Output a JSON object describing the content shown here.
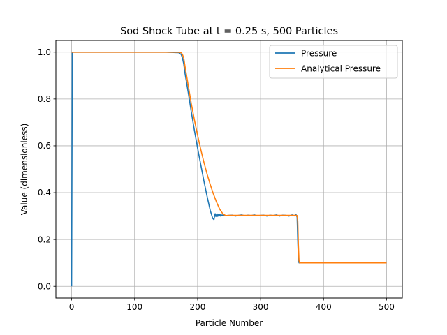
{
  "chart_data": {
    "type": "line",
    "title": "Sod Shock Tube at t = 0.25 s, 500 Particles",
    "xlabel": "Particle Number",
    "ylabel": "Value (dimensionless)",
    "xlim": [
      -25,
      525
    ],
    "ylim": [
      -0.05,
      1.05
    ],
    "xticks": [
      0,
      100,
      200,
      300,
      400,
      500
    ],
    "yticks": [
      0.0,
      0.2,
      0.4,
      0.6,
      0.8,
      1.0
    ],
    "xtick_labels": [
      "0",
      "100",
      "200",
      "300",
      "400",
      "500"
    ],
    "ytick_labels": [
      "0.0",
      "0.2",
      "0.4",
      "0.6",
      "0.8",
      "1.0"
    ],
    "grid": true,
    "legend_position": "top-right",
    "series": [
      {
        "name": "Pressure",
        "color": "#1f77b4",
        "x": [
          0,
          1,
          2,
          5,
          50,
          100,
          150,
          170,
          174,
          176,
          178,
          180,
          185,
          190,
          195,
          200,
          205,
          210,
          215,
          220,
          224,
          226,
          227,
          228,
          229,
          230,
          231,
          232,
          233,
          234,
          235,
          236,
          237,
          238,
          239,
          240,
          242,
          245,
          250,
          255,
          260,
          265,
          270,
          275,
          280,
          285,
          290,
          295,
          300,
          305,
          310,
          315,
          320,
          325,
          330,
          335,
          340,
          345,
          350,
          354,
          356,
          357,
          358,
          359,
          360,
          361,
          365,
          380,
          400,
          450,
          500
        ],
        "y": [
          0.0,
          1.0,
          1.0,
          1.0,
          1.0,
          1.0,
          1.0,
          0.998,
          0.99,
          0.975,
          0.95,
          0.91,
          0.83,
          0.745,
          0.665,
          0.59,
          0.52,
          0.45,
          0.385,
          0.325,
          0.29,
          0.285,
          0.3,
          0.31,
          0.298,
          0.305,
          0.309,
          0.299,
          0.306,
          0.301,
          0.308,
          0.3,
          0.306,
          0.302,
          0.305,
          0.303,
          0.304,
          0.301,
          0.303,
          0.304,
          0.3,
          0.303,
          0.305,
          0.301,
          0.304,
          0.302,
          0.305,
          0.301,
          0.303,
          0.304,
          0.3,
          0.304,
          0.302,
          0.305,
          0.3,
          0.304,
          0.303,
          0.3,
          0.305,
          0.301,
          0.308,
          0.302,
          0.295,
          0.2,
          0.12,
          0.1,
          0.1,
          0.1,
          0.1,
          0.1,
          0.1
        ]
      },
      {
        "name": "Analytical Pressure",
        "color": "#ff7f0e",
        "x": [
          0,
          50,
          100,
          150,
          170,
          174,
          176,
          178,
          180,
          185,
          190,
          195,
          200,
          205,
          210,
          215,
          220,
          225,
          230,
          235,
          240,
          244,
          246,
          248,
          250,
          300,
          350,
          355,
          357,
          358,
          359,
          360,
          361,
          362,
          365,
          400,
          450,
          500
        ],
        "y": [
          1.0,
          1.0,
          1.0,
          1.0,
          1.0,
          0.998,
          0.99,
          0.975,
          0.94,
          0.86,
          0.78,
          0.71,
          0.645,
          0.585,
          0.53,
          0.48,
          0.435,
          0.395,
          0.36,
          0.33,
          0.31,
          0.303,
          0.302,
          0.303,
          0.303,
          0.303,
          0.303,
          0.303,
          0.303,
          0.302,
          0.28,
          0.18,
          0.11,
          0.1,
          0.1,
          0.1,
          0.1,
          0.1
        ]
      }
    ]
  }
}
